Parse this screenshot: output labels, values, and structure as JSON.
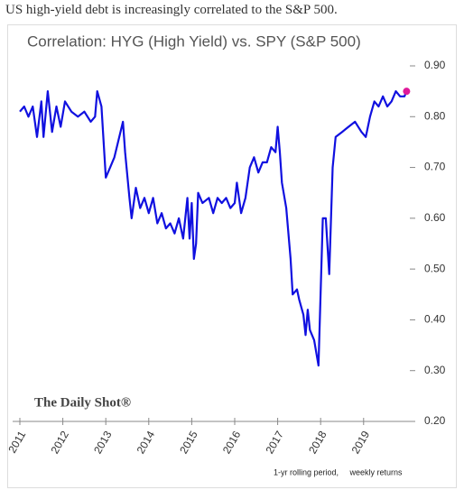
{
  "headline": "US high-yield debt is increasingly correlated to the S&P 500.",
  "chart_data": {
    "type": "line",
    "title": "Correlation: HYG (High Yield) vs. SPY (S&P 500)",
    "source": "The Daily Shot®",
    "annotation": "1-yr rolling period,     weekly returns",
    "color": "#1010e0",
    "x": [
      2011.0,
      2011.1,
      2011.2,
      2011.3,
      2011.4,
      2011.5,
      2011.55,
      2011.65,
      2011.75,
      2011.85,
      2011.95,
      2012.05,
      2012.2,
      2012.35,
      2012.5,
      2012.65,
      2012.75,
      2012.8,
      2012.9,
      2013.0,
      2013.1,
      2013.2,
      2013.4,
      2013.45,
      2013.55,
      2013.6,
      2013.7,
      2013.8,
      2013.9,
      2014.0,
      2014.1,
      2014.2,
      2014.3,
      2014.4,
      2014.5,
      2014.6,
      2014.7,
      2014.8,
      2014.9,
      2014.95,
      2015.0,
      2015.05,
      2015.1,
      2015.15,
      2015.25,
      2015.4,
      2015.5,
      2015.6,
      2015.7,
      2015.8,
      2015.9,
      2016.0,
      2016.05,
      2016.15,
      2016.25,
      2016.35,
      2016.45,
      2016.55,
      2016.65,
      2016.75,
      2016.85,
      2016.95,
      2017.0,
      2017.05,
      2017.1,
      2017.2,
      2017.3,
      2017.35,
      2017.45,
      2017.5,
      2017.6,
      2017.65,
      2017.7,
      2017.75,
      2017.85,
      2017.95,
      2018.05,
      2018.12,
      2018.2,
      2018.28,
      2018.35,
      2018.5,
      2018.65,
      2018.8,
      2018.95,
      2019.05,
      2019.15,
      2019.25,
      2019.35,
      2019.45,
      2019.55,
      2019.65,
      2019.75,
      2019.85,
      2019.95,
      2020.0
    ],
    "values": [
      0.81,
      0.82,
      0.8,
      0.82,
      0.76,
      0.83,
      0.76,
      0.85,
      0.77,
      0.82,
      0.78,
      0.83,
      0.81,
      0.8,
      0.81,
      0.79,
      0.8,
      0.85,
      0.82,
      0.68,
      0.7,
      0.72,
      0.79,
      0.73,
      0.64,
      0.6,
      0.66,
      0.62,
      0.64,
      0.61,
      0.64,
      0.59,
      0.61,
      0.58,
      0.59,
      0.57,
      0.6,
      0.56,
      0.64,
      0.56,
      0.63,
      0.52,
      0.55,
      0.65,
      0.63,
      0.64,
      0.61,
      0.64,
      0.63,
      0.64,
      0.62,
      0.63,
      0.67,
      0.61,
      0.64,
      0.7,
      0.72,
      0.69,
      0.71,
      0.71,
      0.74,
      0.73,
      0.78,
      0.73,
      0.67,
      0.62,
      0.52,
      0.45,
      0.46,
      0.44,
      0.41,
      0.37,
      0.42,
      0.38,
      0.36,
      0.31,
      0.6,
      0.6,
      0.49,
      0.7,
      0.76,
      0.77,
      0.78,
      0.79,
      0.77,
      0.76,
      0.8,
      0.83,
      0.82,
      0.84,
      0.82,
      0.83,
      0.85,
      0.84,
      0.84,
      0.85
    ],
    "marker": {
      "x": 2020.0,
      "y": 0.85,
      "color": "#e0199a"
    },
    "xlim": [
      2011,
      2020.16
    ],
    "xticks": [
      2011,
      2012,
      2013,
      2014,
      2015,
      2016,
      2017,
      2018,
      2019
    ],
    "ylim": [
      0.2,
      0.9
    ],
    "yticks": [
      {
        "value": 0.2,
        "label": "0.20"
      },
      {
        "value": 0.3,
        "label": "0.30"
      },
      {
        "value": 0.4,
        "label": "0.40"
      },
      {
        "value": 0.5,
        "label": "0.50"
      },
      {
        "value": 0.6,
        "label": "0.60"
      },
      {
        "value": 0.7,
        "label": "0.70"
      },
      {
        "value": 0.8,
        "label": "0.80"
      },
      {
        "value": 0.9,
        "label": "0.90"
      }
    ]
  }
}
